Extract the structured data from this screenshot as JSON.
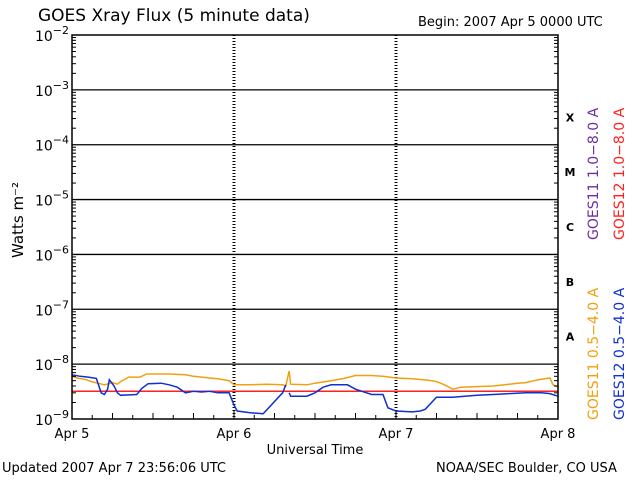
{
  "header": {
    "title": "GOES Xray Flux (5 minute data)",
    "begin": "Begin:  2007 Apr 5 0000 UTC"
  },
  "footer": {
    "updated": "Updated 2007 Apr  7 23:56:06 UTC",
    "source": "NOAA/SEC Boulder, CO USA"
  },
  "chart_data": {
    "type": "line",
    "title": "GOES Xray Flux (5 minute data)",
    "xlabel": "Universal Time",
    "ylabel": "Watts m⁻²",
    "yscale": "log",
    "ylim": [
      1e-09,
      0.01
    ],
    "xlim_days": [
      5,
      8
    ],
    "x_ticks": [
      "Apr 5",
      "Apr 6",
      "Apr 7",
      "Apr 8"
    ],
    "y_ticks": [
      {
        "base": "10",
        "exp": "−2",
        "value": 0.01
      },
      {
        "base": "10",
        "exp": "−3",
        "value": 0.001
      },
      {
        "base": "10",
        "exp": "−4",
        "value": 0.0001
      },
      {
        "base": "10",
        "exp": "−5",
        "value": 1e-05
      },
      {
        "base": "10",
        "exp": "−6",
        "value": 1e-06
      },
      {
        "base": "10",
        "exp": "−7",
        "value": 1e-07
      },
      {
        "base": "10",
        "exp": "−8",
        "value": 1e-08
      },
      {
        "base": "10",
        "exp": "−9",
        "value": 1e-09
      }
    ],
    "flare_classes": [
      {
        "label": "X",
        "value": 0.000316
      },
      {
        "label": "M",
        "value": 3.16e-05
      },
      {
        "label": "C",
        "value": 3.16e-06
      },
      {
        "label": "B",
        "value": 3.16e-07
      },
      {
        "label": "A",
        "value": 3.16e-08
      }
    ],
    "grid": true,
    "legend_position": "right",
    "series": [
      {
        "name": "GOES11 1.0−8.0 A",
        "color": "#6b2fa0",
        "points": []
      },
      {
        "name": "GOES12 1.0−8.0 A",
        "color": "#ff2020",
        "points": [
          [
            5.0,
            3.2e-09
          ],
          [
            8.0,
            3.2e-09
          ]
        ]
      },
      {
        "name": "GOES11 0.5−4.0 A",
        "color": "#f0a010",
        "points": [
          [
            5.0,
            6e-09
          ],
          [
            5.03,
            5.6e-09
          ],
          [
            5.08,
            5.3e-09
          ],
          [
            5.12,
            4.8e-09
          ],
          [
            5.16,
            4.5e-09
          ],
          [
            5.2,
            4.2e-09
          ],
          [
            5.25,
            4.6e-09
          ],
          [
            5.28,
            4.3e-09
          ],
          [
            5.3,
            4.8e-09
          ],
          [
            5.35,
            5.8e-09
          ],
          [
            5.42,
            5.8e-09
          ],
          [
            5.46,
            6.6e-09
          ],
          [
            5.6,
            6.6e-09
          ],
          [
            5.7,
            6.4e-09
          ],
          [
            5.75,
            6e-09
          ],
          [
            5.85,
            5.6e-09
          ],
          [
            5.9,
            5.4e-09
          ],
          [
            5.97,
            5e-09
          ],
          [
            6.0,
            4.2e-09
          ],
          [
            6.1,
            4.2e-09
          ],
          [
            6.2,
            4.3e-09
          ],
          [
            6.3,
            4.2e-09
          ],
          [
            6.32,
            4e-09
          ],
          [
            6.34,
            7.5e-09
          ],
          [
            6.35,
            4.3e-09
          ],
          [
            6.45,
            4.2e-09
          ],
          [
            6.5,
            4.5e-09
          ],
          [
            6.6,
            5e-09
          ],
          [
            6.68,
            5.5e-09
          ],
          [
            6.75,
            6.2e-09
          ],
          [
            6.85,
            6.2e-09
          ],
          [
            6.92,
            6e-09
          ],
          [
            7.0,
            5.6e-09
          ],
          [
            7.1,
            5.4e-09
          ],
          [
            7.2,
            5.1e-09
          ],
          [
            7.25,
            4.8e-09
          ],
          [
            7.3,
            4.2e-09
          ],
          [
            7.35,
            3.5e-09
          ],
          [
            7.4,
            3.8e-09
          ],
          [
            7.6,
            4e-09
          ],
          [
            7.7,
            4.3e-09
          ],
          [
            7.75,
            4.5e-09
          ],
          [
            7.8,
            4.6e-09
          ],
          [
            7.88,
            5.2e-09
          ],
          [
            7.95,
            5.6e-09
          ],
          [
            7.97,
            4.2e-09
          ],
          [
            8.0,
            3.8e-09
          ]
        ]
      },
      {
        "name": "GOES12 0.5−4.0 A",
        "color": "#1030d0",
        "points": [
          [
            5.0,
            6.4e-09
          ],
          [
            5.05,
            6e-09
          ],
          [
            5.1,
            5.8e-09
          ],
          [
            5.15,
            5.5e-09
          ],
          [
            5.18,
            3e-09
          ],
          [
            5.2,
            2.8e-09
          ],
          [
            5.22,
            3.5e-09
          ],
          [
            5.23,
            5.2e-09
          ],
          [
            5.26,
            4e-09
          ],
          [
            5.28,
            3e-09
          ],
          [
            5.3,
            2.7e-09
          ],
          [
            5.4,
            2.8e-09
          ],
          [
            5.43,
            3.6e-09
          ],
          [
            5.47,
            4.4e-09
          ],
          [
            5.55,
            4.5e-09
          ],
          [
            5.6,
            4.2e-09
          ],
          [
            5.65,
            3.8e-09
          ],
          [
            5.7,
            3e-09
          ],
          [
            5.75,
            3.2e-09
          ],
          [
            5.8,
            3.1e-09
          ],
          [
            5.85,
            3.2e-09
          ],
          [
            5.9,
            3e-09
          ],
          [
            5.97,
            3e-09
          ],
          [
            6.0,
            1.8e-09
          ],
          [
            6.02,
            1.4e-09
          ],
          [
            6.1,
            1.3e-09
          ],
          [
            6.18,
            1.25e-09
          ],
          [
            6.3,
            3e-09
          ],
          [
            6.32,
            4.2e-09
          ],
          [
            6.34,
            3e-09
          ],
          [
            6.35,
            2.6e-09
          ],
          [
            6.45,
            2.6e-09
          ],
          [
            6.5,
            3e-09
          ],
          [
            6.55,
            3.8e-09
          ],
          [
            6.6,
            4.2e-09
          ],
          [
            6.7,
            4.2e-09
          ],
          [
            6.75,
            3.5e-09
          ],
          [
            6.85,
            2.8e-09
          ],
          [
            6.92,
            2.8e-09
          ],
          [
            6.95,
            1.6e-09
          ],
          [
            7.0,
            1.4e-09
          ],
          [
            7.1,
            1.35e-09
          ],
          [
            7.15,
            1.4e-09
          ],
          [
            7.18,
            1.5e-09
          ],
          [
            7.25,
            2.5e-09
          ],
          [
            7.35,
            2.5e-09
          ],
          [
            7.5,
            2.7e-09
          ],
          [
            7.6,
            2.8e-09
          ],
          [
            7.7,
            2.9e-09
          ],
          [
            7.8,
            3e-09
          ],
          [
            7.9,
            3e-09
          ],
          [
            7.95,
            2.9e-09
          ],
          [
            8.0,
            2.6e-09
          ]
        ],
        "gaps_after_index": [
          28
        ]
      }
    ]
  }
}
